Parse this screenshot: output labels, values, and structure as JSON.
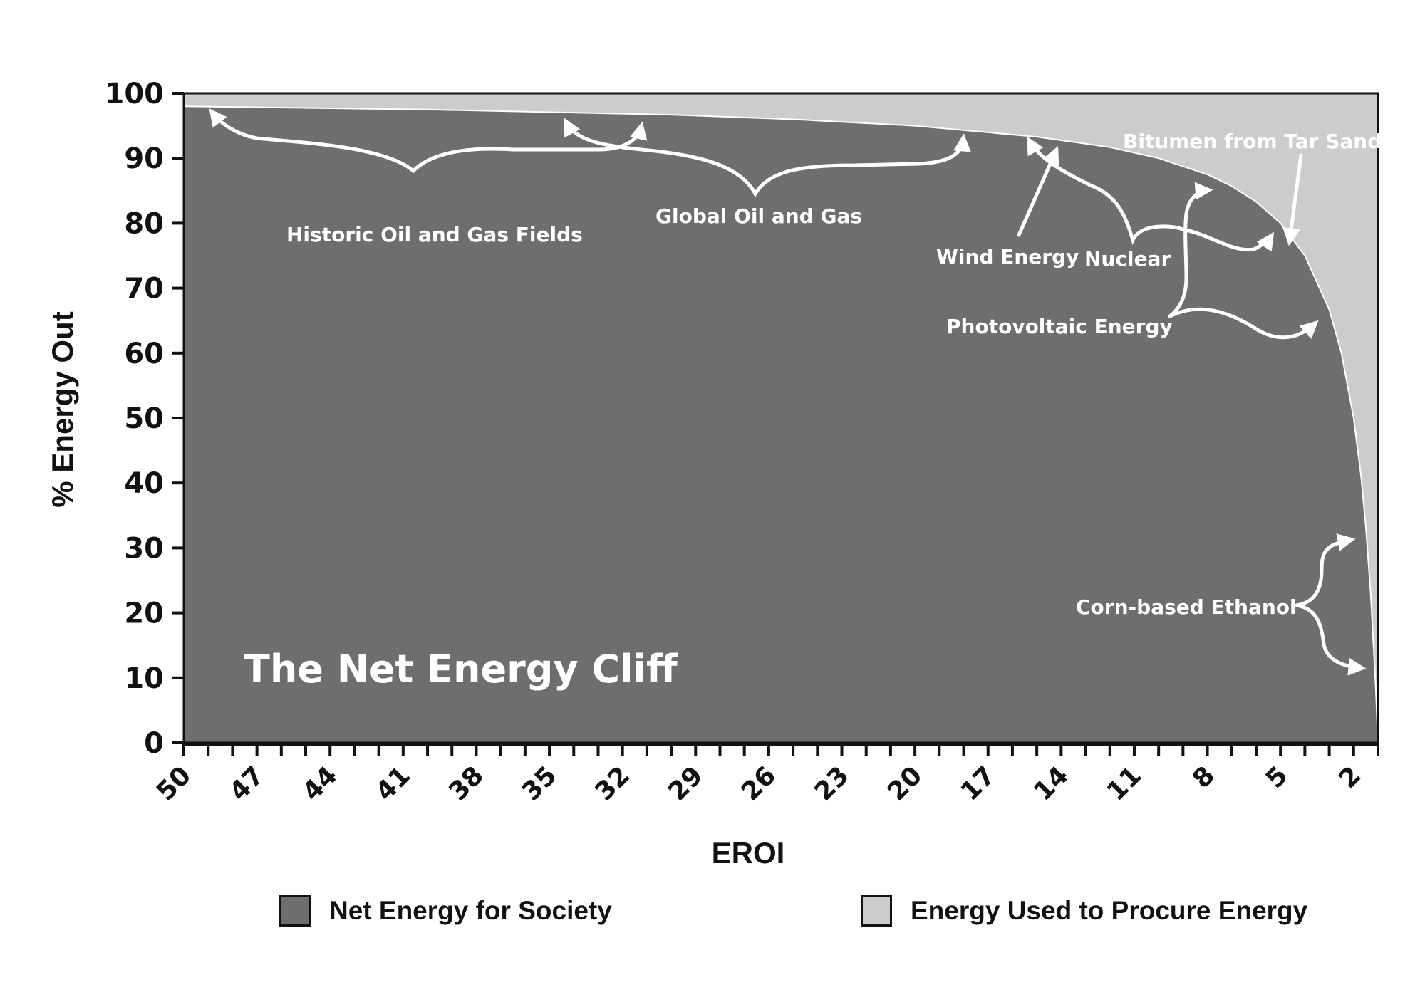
{
  "colors": {
    "net": "#6e6e6e",
    "procure": "#cccccc",
    "axis": "#111111",
    "text_on_dark": "#ffffff"
  },
  "chart_data": {
    "type": "area",
    "title": "The Net Energy Cliff",
    "xlabel": "EROI",
    "ylabel": "% Energy Out",
    "x_reversed": true,
    "xlim": [
      50,
      1
    ],
    "ylim": [
      0,
      100
    ],
    "x_tick_labels": [
      "50",
      "47",
      "44",
      "41",
      "38",
      "35",
      "32",
      "29",
      "26",
      "23",
      "20",
      "17",
      "14",
      "11",
      "8",
      "5",
      "2"
    ],
    "y_tick_labels": [
      "0",
      "10",
      "20",
      "30",
      "40",
      "50",
      "60",
      "70",
      "80",
      "90",
      "100"
    ],
    "x": [
      50,
      40,
      30,
      25,
      20,
      15,
      12,
      10,
      8,
      7,
      6,
      5,
      4,
      3,
      2.5,
      2,
      1.7,
      1.5,
      1.3,
      1.1,
      1
    ],
    "series": [
      {
        "name": "Net Energy for Society",
        "color": "#6e6e6e",
        "values": [
          98,
          97.5,
          96.7,
          96,
          95,
          93.3,
          91.7,
          90,
          87.5,
          85.7,
          83.3,
          80,
          75,
          66.7,
          60,
          50,
          41.2,
          33.3,
          23.1,
          9.1,
          0
        ]
      },
      {
        "name": "Energy Used to Procure Energy",
        "color": "#cccccc",
        "values": [
          2,
          2.5,
          3.3,
          4,
          5,
          6.7,
          8.3,
          10,
          12.5,
          14.3,
          16.7,
          20,
          25,
          33.3,
          40,
          50,
          58.8,
          66.7,
          76.9,
          90.9,
          100
        ]
      }
    ],
    "legend": {
      "placement": "bottom",
      "entries": [
        "Net Energy for Society",
        "Energy Used to Procure Energy"
      ]
    },
    "annotations": [
      "Historic Oil and Gas Fields",
      "Global Oil and Gas",
      "Wind Energy",
      "Nuclear",
      "Bitumen from Tar Sands",
      "Photovoltaic Energy",
      "Corn-based Ethanol"
    ]
  }
}
